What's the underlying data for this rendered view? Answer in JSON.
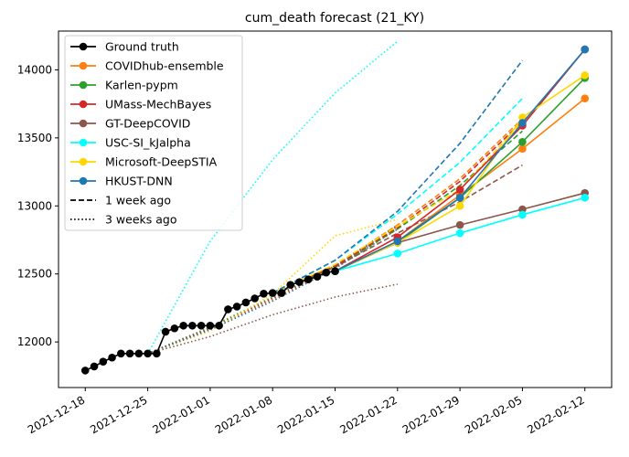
{
  "chart_data": {
    "type": "line",
    "title": "cum_death forecast (21_KY)",
    "xlabel": "",
    "ylabel": "",
    "x_ticks": [
      "2021-12-18",
      "2021-12-25",
      "2022-01-01",
      "2022-01-08",
      "2022-01-15",
      "2022-01-22",
      "2022-01-29",
      "2022-02-05",
      "2022-02-12"
    ],
    "xlim": [
      "2021-12-15",
      "2022-02-15"
    ],
    "y_ticks": [
      12000,
      12500,
      13000,
      13500,
      14000
    ],
    "ylim": [
      11665,
      14285
    ],
    "legend_position": "top-left",
    "legend_style_entries": [
      "1 week ago",
      "3 weeks ago"
    ],
    "ground_truth": {
      "name": "Ground truth",
      "color": "#000000",
      "points": [
        [
          "2021-12-18",
          11790
        ],
        [
          "2021-12-19",
          11820
        ],
        [
          "2021-12-20",
          11855
        ],
        [
          "2021-12-21",
          11885
        ],
        [
          "2021-12-22",
          11915
        ],
        [
          "2021-12-23",
          11915
        ],
        [
          "2021-12-24",
          11915
        ],
        [
          "2021-12-25",
          11915
        ],
        [
          "2021-12-26",
          11915
        ],
        [
          "2021-12-27",
          12075
        ],
        [
          "2021-12-28",
          12100
        ],
        [
          "2021-12-29",
          12120
        ],
        [
          "2021-12-30",
          12120
        ],
        [
          "2021-12-31",
          12120
        ],
        [
          "2022-01-01",
          12120
        ],
        [
          "2022-01-02",
          12120
        ],
        [
          "2022-01-03",
          12240
        ],
        [
          "2022-01-04",
          12260
        ],
        [
          "2022-01-05",
          12290
        ],
        [
          "2022-01-06",
          12320
        ],
        [
          "2022-01-07",
          12355
        ],
        [
          "2022-01-08",
          12360
        ],
        [
          "2022-01-09",
          12360
        ],
        [
          "2022-01-10",
          12420
        ],
        [
          "2022-01-11",
          12440
        ],
        [
          "2022-01-12",
          12460
        ],
        [
          "2022-01-13",
          12480
        ],
        [
          "2022-01-14",
          12510
        ],
        [
          "2022-01-15",
          12520
        ]
      ]
    },
    "series": [
      {
        "name": "COVIDhub-ensemble",
        "color": "#ff7f0e",
        "current": [
          [
            "2022-01-15",
            12520
          ],
          [
            "2022-01-22",
            12740
          ],
          [
            "2022-01-29",
            13080
          ],
          [
            "2022-02-05",
            13420
          ],
          [
            "2022-02-12",
            13790
          ]
        ],
        "week1": [
          [
            "2022-01-08",
            12360
          ],
          [
            "2022-01-15",
            12560
          ],
          [
            "2022-01-22",
            12860
          ],
          [
            "2022-01-29",
            13200
          ],
          [
            "2022-02-05",
            13640
          ]
        ],
        "week3": [
          [
            "2021-12-25",
            11915
          ],
          [
            "2022-01-01",
            12100
          ],
          [
            "2022-01-08",
            12310
          ],
          [
            "2022-01-15",
            12540
          ],
          [
            "2022-01-22",
            12830
          ]
        ]
      },
      {
        "name": "Karlen-pypm",
        "color": "#2ca02c",
        "current": [
          [
            "2022-01-15",
            12520
          ],
          [
            "2022-01-22",
            12730
          ],
          [
            "2022-01-29",
            13060
          ],
          [
            "2022-02-05",
            13470
          ],
          [
            "2022-02-12",
            13940
          ]
        ],
        "week1": [
          [
            "2022-01-08",
            12360
          ],
          [
            "2022-01-15",
            12550
          ],
          [
            "2022-01-22",
            12830
          ],
          [
            "2022-01-29",
            13150
          ],
          [
            "2022-02-05",
            13550
          ]
        ],
        "week3": [
          [
            "2021-12-25",
            11915
          ],
          [
            "2022-01-01",
            12110
          ],
          [
            "2022-01-08",
            12330
          ],
          [
            "2022-01-15",
            12560
          ],
          [
            "2022-01-22",
            12860
          ]
        ]
      },
      {
        "name": "UMass-MechBayes",
        "color": "#d62728",
        "current": [
          [
            "2022-01-15",
            12520
          ],
          [
            "2022-01-22",
            12770
          ],
          [
            "2022-01-29",
            13120
          ],
          [
            "2022-02-05",
            13590
          ],
          [
            "2022-02-12",
            14150
          ]
        ],
        "week1": [
          [
            "2022-01-08",
            12360
          ],
          [
            "2022-01-15",
            12560
          ],
          [
            "2022-01-22",
            12840
          ],
          [
            "2022-01-29",
            13180
          ],
          [
            "2022-02-05",
            13620
          ]
        ],
        "week3": [
          [
            "2021-12-25",
            11915
          ],
          [
            "2022-01-01",
            12100
          ],
          [
            "2022-01-08",
            12320
          ],
          [
            "2022-01-15",
            12550
          ],
          [
            "2022-01-22",
            12850
          ]
        ]
      },
      {
        "name": "GT-DeepCOVID",
        "color": "#8c564b",
        "current": [
          [
            "2022-01-15",
            12520
          ],
          [
            "2022-01-22",
            12730
          ],
          [
            "2022-01-29",
            12860
          ],
          [
            "2022-02-05",
            12975
          ],
          [
            "2022-02-12",
            13095
          ]
        ],
        "week1": [
          [
            "2022-01-08",
            12360
          ],
          [
            "2022-01-15",
            12550
          ],
          [
            "2022-01-22",
            12800
          ],
          [
            "2022-01-29",
            13030
          ],
          [
            "2022-02-05",
            13300
          ]
        ],
        "week3": [
          [
            "2021-12-25",
            11915
          ],
          [
            "2022-01-01",
            12040
          ],
          [
            "2022-01-08",
            12200
          ],
          [
            "2022-01-15",
            12330
          ],
          [
            "2022-01-22",
            12425
          ]
        ]
      },
      {
        "name": "USC-SI_kJalpha",
        "color": "#00ffff",
        "current": [
          [
            "2022-01-15",
            12520
          ],
          [
            "2022-01-22",
            12650
          ],
          [
            "2022-01-29",
            12800
          ],
          [
            "2022-02-05",
            12935
          ],
          [
            "2022-02-12",
            13060
          ]
        ],
        "week1": [
          [
            "2022-01-08",
            12360
          ],
          [
            "2022-01-15",
            12600
          ],
          [
            "2022-01-22",
            12940
          ],
          [
            "2022-01-29",
            13320
          ],
          [
            "2022-02-05",
            13790
          ]
        ],
        "week3": [
          [
            "2021-12-25",
            11915
          ],
          [
            "2022-01-01",
            12740
          ],
          [
            "2022-01-08",
            13340
          ],
          [
            "2022-01-15",
            13830
          ],
          [
            "2022-01-22",
            14210
          ]
        ]
      },
      {
        "name": "Microsoft-DeepSTIA",
        "color": "#ffd700",
        "current": [
          [
            "2022-01-15",
            12520
          ],
          [
            "2022-01-22",
            12730
          ],
          [
            "2022-01-29",
            13000
          ],
          [
            "2022-02-05",
            13650
          ],
          [
            "2022-02-12",
            13960
          ]
        ],
        "week1": [
          [
            "2022-01-08",
            12360
          ],
          [
            "2022-01-15",
            12570
          ],
          [
            "2022-01-22",
            12850
          ],
          [
            "2022-01-29",
            13120
          ],
          [
            "2022-02-05",
            13620
          ]
        ],
        "week3": [
          [
            "2021-12-25",
            11915
          ],
          [
            "2022-01-01",
            12080
          ],
          [
            "2022-01-08",
            12350
          ],
          [
            "2022-01-15",
            12780
          ],
          [
            "2022-01-22",
            12900
          ]
        ]
      },
      {
        "name": "HKUST-DNN",
        "color": "#1f77b4",
        "current": [
          [
            "2022-01-15",
            12520
          ],
          [
            "2022-01-22",
            12740
          ],
          [
            "2022-01-29",
            13060
          ],
          [
            "2022-02-05",
            13610
          ],
          [
            "2022-02-12",
            14150
          ]
        ],
        "week1": [
          [
            "2022-01-08",
            12360
          ],
          [
            "2022-01-15",
            12600
          ],
          [
            "2022-01-22",
            12960
          ],
          [
            "2022-01-29",
            13460
          ],
          [
            "2022-02-05",
            14070
          ]
        ],
        "week3": [
          [
            "2021-12-25",
            11915
          ],
          [
            "2022-01-01",
            12090
          ],
          [
            "2022-01-08",
            12300
          ],
          [
            "2022-01-15",
            12540
          ],
          [
            "2022-01-22",
            12830
          ]
        ]
      }
    ]
  }
}
